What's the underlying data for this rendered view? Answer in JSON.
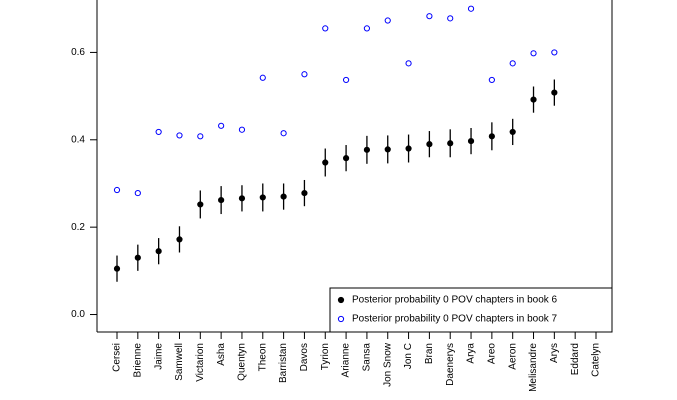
{
  "chart_data": {
    "type": "scatter",
    "categories": [
      "Cersei",
      "Brienne",
      "Jaime",
      "Samwell",
      "Victarion",
      "Asha",
      "Quentyn",
      "Theon",
      "Barristan",
      "Davos",
      "Tyrion",
      "Arianne",
      "Sansa",
      "Jon Snow",
      "Jon C",
      "Bran",
      "Daenerys",
      "Arya",
      "Areo",
      "Aeron",
      "Melisandre",
      "Arys",
      "Eddard",
      "Catelyn"
    ],
    "series": [
      {
        "name": "Posterior probability 0 POV chapters in book 6",
        "color": "#000000",
        "marker": "filled",
        "values": [
          0.105,
          0.13,
          0.145,
          0.172,
          0.252,
          0.262,
          0.266,
          0.268,
          0.27,
          0.278,
          0.348,
          0.358,
          0.377,
          0.378,
          0.38,
          0.39,
          0.392,
          0.397,
          0.408,
          0.418,
          0.492,
          0.508,
          null,
          null
        ],
        "errors": [
          0.03,
          0.03,
          0.03,
          0.03,
          0.032,
          0.032,
          0.03,
          0.032,
          0.03,
          0.03,
          0.032,
          0.03,
          0.032,
          0.032,
          0.032,
          0.03,
          0.032,
          0.03,
          0.032,
          0.03,
          0.03,
          0.03,
          null,
          null
        ]
      },
      {
        "name": "Posterior probability 0 POV chapters in book 7",
        "color": "#0000ff",
        "marker": "open",
        "values": [
          0.285,
          0.278,
          0.418,
          0.41,
          0.408,
          0.432,
          0.423,
          0.542,
          0.415,
          0.55,
          0.655,
          0.537,
          0.655,
          0.673,
          0.575,
          0.683,
          0.678,
          0.7,
          0.537,
          0.575,
          0.598,
          0.6,
          null,
          null
        ]
      }
    ],
    "ylim": [
      -0.04,
      0.72
    ],
    "yticks": [
      {
        "value": 0,
        "label": "0.0"
      },
      0.2,
      0.4,
      0.6
    ],
    "legend": "bottom-right"
  }
}
